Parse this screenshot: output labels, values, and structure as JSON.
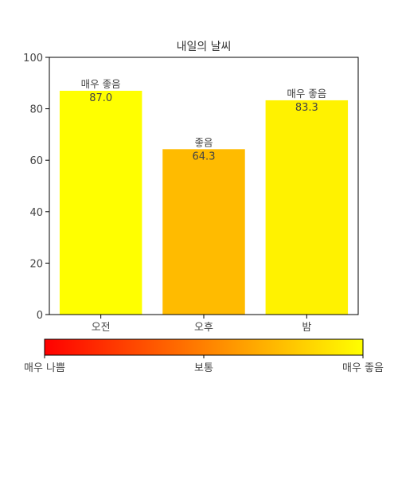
{
  "chart_data": {
    "type": "bar",
    "title": "내일의 날씨",
    "categories": [
      "오전",
      "오후",
      "밤"
    ],
    "values": [
      87.0,
      64.3,
      83.3
    ],
    "value_labels": [
      "87.0",
      "64.3",
      "83.3"
    ],
    "category_ratings": [
      "매우 좋음",
      "좋음",
      "매우 좋음"
    ],
    "bar_colors": [
      "#ffff00",
      "#ffbb00",
      "#fff200"
    ],
    "ylim": [
      0,
      100
    ],
    "yticks": [
      0,
      20,
      40,
      60,
      80,
      100
    ],
    "xlabel": "",
    "ylabel": "",
    "grid": false,
    "colorbar": {
      "orientation": "horizontal",
      "placement": "bottom",
      "colors": [
        "#ff0000",
        "#ff8000",
        "#ffff00"
      ],
      "ticks": [
        {
          "value": 0,
          "label": "매우 나쁨"
        },
        {
          "value": 50,
          "label": "보통"
        },
        {
          "value": 100,
          "label": "매우 좋음"
        }
      ]
    }
  }
}
